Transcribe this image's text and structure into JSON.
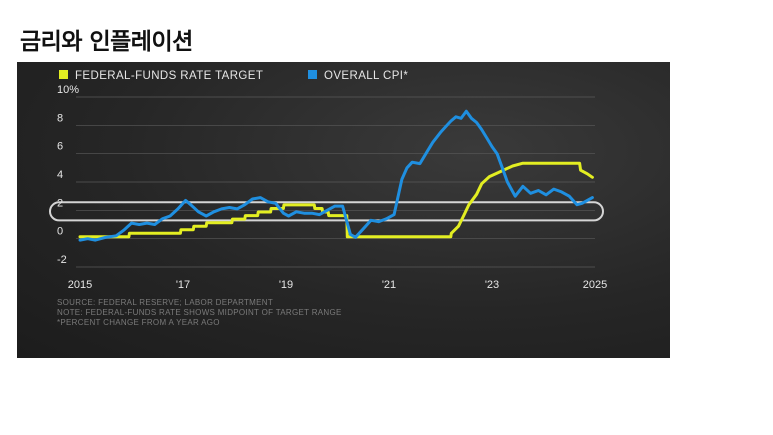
{
  "page": {
    "title": "금리와 인플레이션"
  },
  "notes": {
    "source": "SOURCE: FEDERAL RESERVE; LABOR DEPARTMENT",
    "note": "NOTE: FEDERAL-FUNDS RATE SHOWS MIDPOINT OF TARGET RANGE",
    "footnote": "*PERCENT CHANGE FROM A YEAR AGO"
  },
  "colors": {
    "fed_funds": "#e3ee22",
    "cpi": "#1f8fe0",
    "grid": "#5a5a5a",
    "highlight": "#e8e8e8",
    "text": "#e6e6e6"
  },
  "chart_data": {
    "type": "line",
    "title": "",
    "xlabel": "",
    "ylabel": "",
    "ylim": [
      -2,
      10
    ],
    "xlim": [
      2015,
      2025
    ],
    "yticks": [
      {
        "value": 10,
        "label": "10%"
      },
      {
        "value": 8,
        "label": "8"
      },
      {
        "value": 6,
        "label": "6"
      },
      {
        "value": 4,
        "label": "4"
      },
      {
        "value": 2,
        "label": "2"
      },
      {
        "value": 0,
        "label": "0"
      },
      {
        "value": -2,
        "label": "-2"
      }
    ],
    "xticks": [
      {
        "value": 2015,
        "label": "2015"
      },
      {
        "value": 2017,
        "label": "'17"
      },
      {
        "value": 2019,
        "label": "'19"
      },
      {
        "value": 2021,
        "label": "'21"
      },
      {
        "value": 2023,
        "label": "'23"
      },
      {
        "value": 2025,
        "label": "2025"
      }
    ],
    "grid": true,
    "legend_placement": "top-left",
    "highlight_band": [
      1.5,
      2.5
    ],
    "series": [
      {
        "name": "FEDERAL-FUNDS RATE TARGET",
        "color": "#e3ee22",
        "x": [
          2015.0,
          2015.95,
          2015.96,
          2016.95,
          2016.96,
          2017.2,
          2017.21,
          2017.45,
          2017.46,
          2017.95,
          2017.96,
          2018.2,
          2018.21,
          2018.45,
          2018.46,
          2018.7,
          2018.71,
          2018.95,
          2018.96,
          2019.55,
          2019.56,
          2019.7,
          2019.71,
          2019.82,
          2019.83,
          2020.18,
          2020.19,
          2022.2,
          2022.21,
          2022.35,
          2022.45,
          2022.55,
          2022.7,
          2022.8,
          2022.95,
          2023.1,
          2023.25,
          2023.4,
          2023.6,
          2024.7,
          2024.72,
          2024.85,
          2024.95
        ],
        "y": [
          0.13,
          0.13,
          0.38,
          0.38,
          0.63,
          0.63,
          0.88,
          0.88,
          1.13,
          1.13,
          1.38,
          1.38,
          1.63,
          1.63,
          1.88,
          1.88,
          2.13,
          2.13,
          2.38,
          2.38,
          2.13,
          2.13,
          1.88,
          1.88,
          1.63,
          1.63,
          0.13,
          0.13,
          0.38,
          0.88,
          1.63,
          2.38,
          3.13,
          3.88,
          4.38,
          4.63,
          4.88,
          5.13,
          5.33,
          5.33,
          4.83,
          4.58,
          4.33
        ]
      },
      {
        "name": "OVERALL CPI*",
        "color": "#1f8fe0",
        "x": [
          2015.0,
          2015.15,
          2015.3,
          2015.5,
          2015.7,
          2015.85,
          2016.0,
          2016.15,
          2016.3,
          2016.45,
          2016.6,
          2016.75,
          2016.9,
          2017.05,
          2017.15,
          2017.3,
          2017.45,
          2017.6,
          2017.75,
          2017.9,
          2018.05,
          2018.2,
          2018.35,
          2018.5,
          2018.65,
          2018.8,
          2018.95,
          2019.05,
          2019.2,
          2019.35,
          2019.5,
          2019.65,
          2019.8,
          2019.95,
          2020.1,
          2020.25,
          2020.35,
          2020.5,
          2020.65,
          2020.8,
          2020.95,
          2021.1,
          2021.25,
          2021.35,
          2021.45,
          2021.6,
          2021.75,
          2021.85,
          2022.0,
          2022.1,
          2022.2,
          2022.3,
          2022.4,
          2022.5,
          2022.6,
          2022.7,
          2022.8,
          2022.9,
          2023.0,
          2023.1,
          2023.2,
          2023.3,
          2023.45,
          2023.6,
          2023.75,
          2023.9,
          2024.05,
          2024.2,
          2024.35,
          2024.5,
          2024.65,
          2024.75,
          2024.85,
          2024.95
        ],
        "y": [
          -0.1,
          0.0,
          -0.1,
          0.1,
          0.2,
          0.6,
          1.1,
          1.0,
          1.1,
          1.0,
          1.4,
          1.6,
          2.1,
          2.7,
          2.4,
          1.9,
          1.6,
          1.9,
          2.1,
          2.2,
          2.1,
          2.4,
          2.8,
          2.9,
          2.6,
          2.5,
          1.8,
          1.6,
          1.9,
          1.8,
          1.8,
          1.7,
          2.0,
          2.3,
          2.3,
          0.3,
          0.1,
          0.7,
          1.3,
          1.2,
          1.4,
          1.7,
          4.2,
          5.0,
          5.4,
          5.3,
          6.2,
          6.8,
          7.5,
          7.9,
          8.3,
          8.6,
          8.5,
          9.0,
          8.5,
          8.2,
          7.7,
          7.1,
          6.5,
          6.0,
          5.0,
          4.0,
          3.0,
          3.7,
          3.2,
          3.4,
          3.1,
          3.5,
          3.3,
          3.0,
          2.4,
          2.5,
          2.7,
          2.9
        ]
      }
    ]
  }
}
